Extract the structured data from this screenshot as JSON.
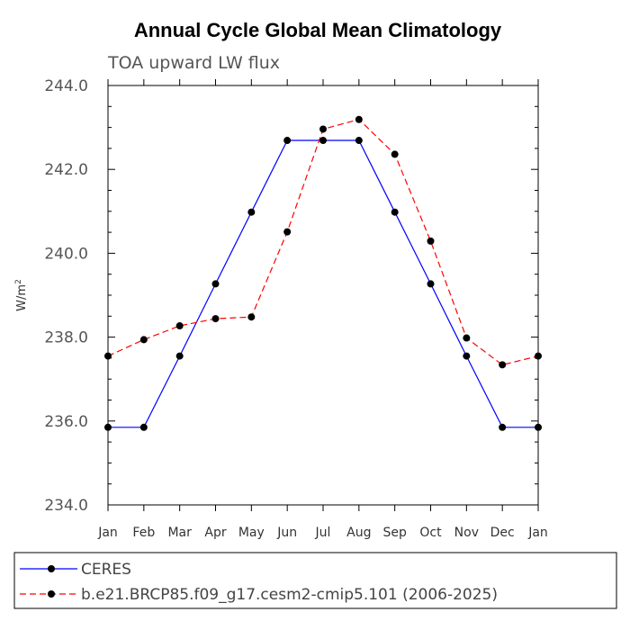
{
  "chart_data": {
    "type": "line",
    "title": "Annual Cycle Global Mean Climatology",
    "subtitle": "TOA upward LW flux",
    "xlabel": "",
    "ylabel_base": "W/m",
    "ylabel_exp": "2",
    "ylim": [
      234.0,
      244.0
    ],
    "yticks": [
      "234.0",
      "236.0",
      "238.0",
      "240.0",
      "242.0",
      "244.0"
    ],
    "ytick_values": [
      234.0,
      236.0,
      238.0,
      240.0,
      242.0,
      244.0
    ],
    "categories": [
      "Jan",
      "Feb",
      "Mar",
      "Apr",
      "May",
      "Jun",
      "Jul",
      "Aug",
      "Sep",
      "Oct",
      "Nov",
      "Dec",
      "Jan"
    ],
    "grid": false,
    "legend_position": "bottom",
    "series": [
      {
        "name": "CERES",
        "color": "#0000ff",
        "dash": "solid",
        "values": [
          235.85,
          235.85,
          237.55,
          239.27,
          240.98,
          242.69,
          242.69,
          242.69,
          240.98,
          239.27,
          237.55,
          235.85,
          235.85
        ]
      },
      {
        "name": "b.e21.BRCP85.f09_g17.cesm2-cmip5.101 (2006-2025)",
        "color": "#ff0000",
        "dash": "dashed",
        "values": [
          237.55,
          237.94,
          238.27,
          238.44,
          238.48,
          240.51,
          242.96,
          243.19,
          242.36,
          240.29,
          237.98,
          237.34,
          237.55
        ]
      }
    ]
  }
}
